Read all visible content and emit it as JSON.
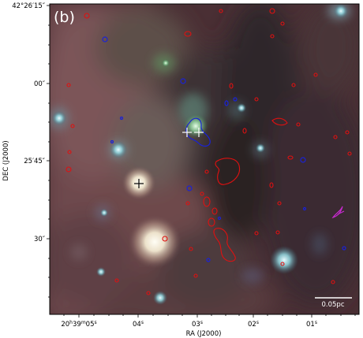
{
  "panel_label": "(b)",
  "axes": {
    "xlabel": "RA (J2000)",
    "ylabel": "DEC (J2000)",
    "x_ticks": [
      {
        "main": "20",
        "s1": "h",
        "m2": "39",
        "s2": "m",
        "v": "05",
        "s3": "s"
      },
      {
        "v": "04",
        "s3": "s"
      },
      {
        "v": "03",
        "s3": "s"
      },
      {
        "v": "02",
        "s3": "s"
      },
      {
        "v": "01",
        "s3": "s"
      }
    ],
    "y_ticks": [
      {
        "label": "42°26′15″"
      },
      {
        "label": "00″"
      },
      {
        "label": "25′45″"
      },
      {
        "label": "30″"
      }
    ]
  },
  "scale_bar": {
    "label": "0.05pc"
  },
  "colors": {
    "red_contour": "#e01010",
    "blue_contour": "#1a22d6",
    "magenta_contour": "#c82ad0",
    "marker_black": "#000000",
    "marker_white": "#ffffff"
  }
}
